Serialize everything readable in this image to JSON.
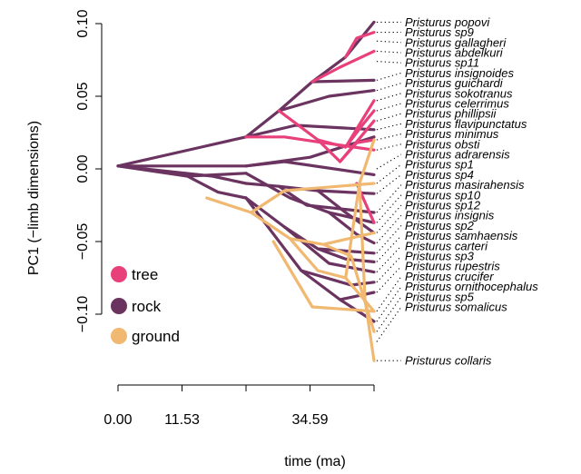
{
  "chart_data": {
    "type": "line",
    "title": "",
    "xlabel": "time (ma)",
    "ylabel": "PC1 (−limb dimensions)",
    "x_ticks": [
      {
        "value": 0,
        "label": "0.00"
      },
      {
        "value": 11.53,
        "label": "11.53"
      },
      {
        "value": 23.06,
        "label": ""
      },
      {
        "value": 34.59,
        "label": "34.59"
      },
      {
        "value": 46.12,
        "label": ""
      }
    ],
    "y_ticks": [
      {
        "value": 0.1,
        "label": "0.10"
      },
      {
        "value": 0.05,
        "label": "0.05"
      },
      {
        "value": 0.0,
        "label": "0.00"
      },
      {
        "value": -0.05,
        "label": "−0.05"
      },
      {
        "value": -0.1,
        "label": "−0.10"
      }
    ],
    "xlim": [
      0,
      46.12
    ],
    "ylim": [
      -0.13,
      0.1
    ],
    "grid": false,
    "legend_position": "bottom-left",
    "colors": {
      "tree": "#E8407A",
      "rock": "#6B3460",
      "ground": "#F0B870"
    },
    "legend": [
      {
        "key": "tree",
        "label": "tree",
        "color": "#E8407A"
      },
      {
        "key": "rock",
        "label": "rock",
        "color": "#6B3460"
      },
      {
        "key": "ground",
        "label": "ground",
        "color": "#F0B870"
      }
    ],
    "tips": [
      {
        "name": "Pristurus popovi",
        "y": 0.101
      },
      {
        "name": "Pristurus sp9",
        "y": 0.094
      },
      {
        "name": "Pristurus gallagheri",
        "y": 0.088
      },
      {
        "name": "Pristurus abdelkuri",
        "y": 0.081
      },
      {
        "name": "Pristurus sp11",
        "y": 0.074
      },
      {
        "name": "Pristurus insignoides",
        "y": 0.061
      },
      {
        "name": "Pristurus guichardi",
        "y": 0.054
      },
      {
        "name": "Pristurus sokotranus",
        "y": 0.047
      },
      {
        "name": "Pristurus celerrimus",
        "y": 0.04
      },
      {
        "name": "Pristurus phillipsii",
        "y": 0.033
      },
      {
        "name": "Pristurus flavipunctatus",
        "y": 0.027
      },
      {
        "name": "Pristurus minimus",
        "y": 0.02
      },
      {
        "name": "Pristurus obsti",
        "y": 0.013
      },
      {
        "name": "Pristurus adrarensis",
        "y": 0.0
      },
      {
        "name": "Pristurus sp1",
        "y": -0.01
      },
      {
        "name": "Pristurus sp4",
        "y": -0.017
      },
      {
        "name": "Pristurus masirahensis",
        "y": -0.03
      },
      {
        "name": "Pristurus sp10",
        "y": -0.037
      },
      {
        "name": "Pristurus sp12",
        "y": -0.044
      },
      {
        "name": "Pristurus insignis",
        "y": -0.051
      },
      {
        "name": "Pristurus sp2",
        "y": -0.058
      },
      {
        "name": "Pristurus samhaensis",
        "y": -0.064
      },
      {
        "name": "Pristurus carteri",
        "y": -0.071
      },
      {
        "name": "Pristurus sp3",
        "y": -0.078
      },
      {
        "name": "Pristurus rupestris",
        "y": -0.085
      },
      {
        "name": "Pristurus crucifer",
        "y": -0.098
      },
      {
        "name": "Pristurus ornithocephalus",
        "y": -0.105
      },
      {
        "name": "Pristurus sp5",
        "y": -0.112
      },
      {
        "name": "Pristurus somalicus",
        "y": -0.119
      },
      {
        "name": "Pristurus collaris",
        "y": -0.132
      }
    ],
    "label_values": [
      0.101,
      0.094,
      0.087,
      0.08,
      0.073,
      0.066,
      0.059,
      0.052,
      0.045,
      0.038,
      0.031,
      0.024,
      0.017,
      0.01,
      0.003,
      -0.004,
      -0.011,
      -0.018,
      -0.025,
      -0.032,
      -0.039,
      -0.046,
      -0.053,
      -0.06,
      -0.067,
      -0.074,
      -0.081,
      -0.088,
      -0.095,
      -0.132
    ],
    "branches": [
      {
        "state": "rock",
        "points": [
          [
            0,
            0.002
          ],
          [
            23.06,
            0.002
          ]
        ]
      },
      {
        "state": "rock",
        "points": [
          [
            0,
            0.002
          ],
          [
            15,
            0.015
          ],
          [
            23.06,
            0.022
          ]
        ]
      },
      {
        "state": "rock",
        "points": [
          [
            0,
            0.002
          ],
          [
            17,
            -0.005
          ],
          [
            23.06,
            -0.01
          ]
        ]
      },
      {
        "state": "rock",
        "points": [
          [
            0,
            0.002
          ],
          [
            12.5,
            -0.005
          ],
          [
            23.06,
            -0.003
          ]
        ]
      },
      {
        "state": "rock",
        "points": [
          [
            12.5,
            -0.005
          ],
          [
            18,
            -0.016
          ],
          [
            23.06,
            -0.02
          ]
        ]
      },
      {
        "state": "rock",
        "points": [
          [
            23.06,
            0.002
          ],
          [
            34.59,
            0.008
          ],
          [
            46.12,
            0.022
          ]
        ]
      },
      {
        "state": "rock",
        "points": [
          [
            23.06,
            0.002
          ],
          [
            30,
            0.005
          ],
          [
            46.12,
            -0.004
          ]
        ]
      },
      {
        "state": "rock",
        "points": [
          [
            23.06,
            0.022
          ],
          [
            29,
            0.04
          ],
          [
            35,
            0.06
          ],
          [
            41,
            0.077
          ],
          [
            46.12,
            0.101
          ]
        ]
      },
      {
        "state": "rock",
        "points": [
          [
            35,
            0.06
          ],
          [
            46.12,
            0.061
          ]
        ]
      },
      {
        "state": "rock",
        "points": [
          [
            29,
            0.04
          ],
          [
            38,
            0.05
          ],
          [
            46.12,
            0.054
          ]
        ]
      },
      {
        "state": "rock",
        "points": [
          [
            23.06,
            0.022
          ],
          [
            32,
            0.03
          ],
          [
            46.12,
            0.027
          ]
        ]
      },
      {
        "state": "rock",
        "points": [
          [
            23.06,
            -0.01
          ],
          [
            29,
            -0.012
          ],
          [
            36,
            -0.015
          ],
          [
            46.12,
            -0.017
          ]
        ]
      },
      {
        "state": "rock",
        "points": [
          [
            29,
            -0.012
          ],
          [
            34,
            -0.025
          ],
          [
            46.12,
            -0.03
          ]
        ]
      },
      {
        "state": "rock",
        "points": [
          [
            36,
            -0.015
          ],
          [
            41,
            -0.03
          ],
          [
            46.12,
            -0.044
          ]
        ]
      },
      {
        "state": "rock",
        "points": [
          [
            23.06,
            -0.003
          ],
          [
            31,
            -0.02
          ],
          [
            38,
            -0.03
          ],
          [
            46.12,
            -0.037
          ]
        ]
      },
      {
        "state": "rock",
        "points": [
          [
            38,
            -0.03
          ],
          [
            43,
            -0.045
          ],
          [
            46.12,
            -0.051
          ]
        ]
      },
      {
        "state": "rock",
        "points": [
          [
            23.06,
            -0.02
          ],
          [
            30,
            -0.04
          ],
          [
            36,
            -0.055
          ],
          [
            46.12,
            -0.058
          ]
        ]
      },
      {
        "state": "rock",
        "points": [
          [
            36,
            -0.055
          ],
          [
            41,
            -0.062
          ],
          [
            46.12,
            -0.064
          ]
        ]
      },
      {
        "state": "rock",
        "points": [
          [
            30,
            -0.04
          ],
          [
            38,
            -0.065
          ],
          [
            46.12,
            -0.071
          ]
        ]
      },
      {
        "state": "rock",
        "points": [
          [
            23.06,
            -0.02
          ],
          [
            33,
            -0.07
          ],
          [
            40,
            -0.09
          ],
          [
            46.12,
            -0.105
          ]
        ]
      },
      {
        "state": "rock",
        "points": [
          [
            40,
            -0.09
          ],
          [
            46.12,
            -0.085
          ]
        ]
      },
      {
        "state": "rock",
        "points": [
          [
            33,
            -0.07
          ],
          [
            42,
            -0.08
          ],
          [
            46.12,
            -0.078
          ]
        ]
      },
      {
        "state": "tree",
        "points": [
          [
            41,
            0.077
          ],
          [
            43,
            0.09
          ],
          [
            46.12,
            0.094
          ]
        ]
      },
      {
        "state": "tree",
        "points": [
          [
            35,
            0.06
          ],
          [
            40,
            0.07
          ],
          [
            46.12,
            0.081
          ]
        ]
      },
      {
        "state": "tree",
        "points": [
          [
            29,
            0.04
          ],
          [
            36,
            0.02
          ],
          [
            41,
            0.015
          ],
          [
            46.12,
            0.047
          ]
        ]
      },
      {
        "state": "tree",
        "points": [
          [
            41,
            0.015
          ],
          [
            44,
            0.03
          ],
          [
            46.12,
            0.04
          ]
        ]
      },
      {
        "state": "tree",
        "points": [
          [
            36,
            0.02
          ],
          [
            40,
            0.005
          ],
          [
            46.12,
            0.033
          ]
        ]
      },
      {
        "state": "tree",
        "points": [
          [
            40,
            0.005
          ],
          [
            43,
            0.018
          ],
          [
            46.12,
            0.02
          ]
        ]
      },
      {
        "state": "tree",
        "points": [
          [
            23.06,
            0.022
          ],
          [
            30,
            0.022
          ],
          [
            37,
            0.018
          ],
          [
            46.12,
            0.013
          ]
        ]
      },
      {
        "state": "tree",
        "points": [
          [
            43,
            -0.01
          ],
          [
            46.12,
            -0.037
          ]
        ]
      },
      {
        "state": "ground",
        "points": [
          [
            16,
            -0.02
          ],
          [
            24,
            -0.03
          ],
          [
            30,
            -0.015
          ],
          [
            46.12,
            -0.01
          ]
        ]
      },
      {
        "state": "ground",
        "points": [
          [
            24,
            -0.03
          ],
          [
            31,
            -0.048
          ],
          [
            37,
            -0.052
          ],
          [
            46.12,
            -0.044
          ]
        ]
      },
      {
        "state": "ground",
        "points": [
          [
            31,
            -0.048
          ],
          [
            36,
            -0.07
          ],
          [
            41,
            -0.075
          ],
          [
            46.12,
            -0.098
          ]
        ]
      },
      {
        "state": "ground",
        "points": [
          [
            37,
            -0.052
          ],
          [
            42,
            -0.06
          ],
          [
            46.12,
            -0.112
          ]
        ]
      },
      {
        "state": "ground",
        "points": [
          [
            41,
            -0.075
          ],
          [
            43.5,
            -0.01
          ],
          [
            46.12,
            0.02
          ]
        ]
      },
      {
        "state": "ground",
        "points": [
          [
            28,
            -0.05
          ],
          [
            35,
            -0.095
          ],
          [
            46.12,
            -0.098
          ]
        ]
      },
      {
        "state": "ground",
        "points": [
          [
            43.5,
            -0.01
          ],
          [
            44.5,
            -0.09
          ],
          [
            46.12,
            -0.132
          ]
        ]
      }
    ]
  }
}
